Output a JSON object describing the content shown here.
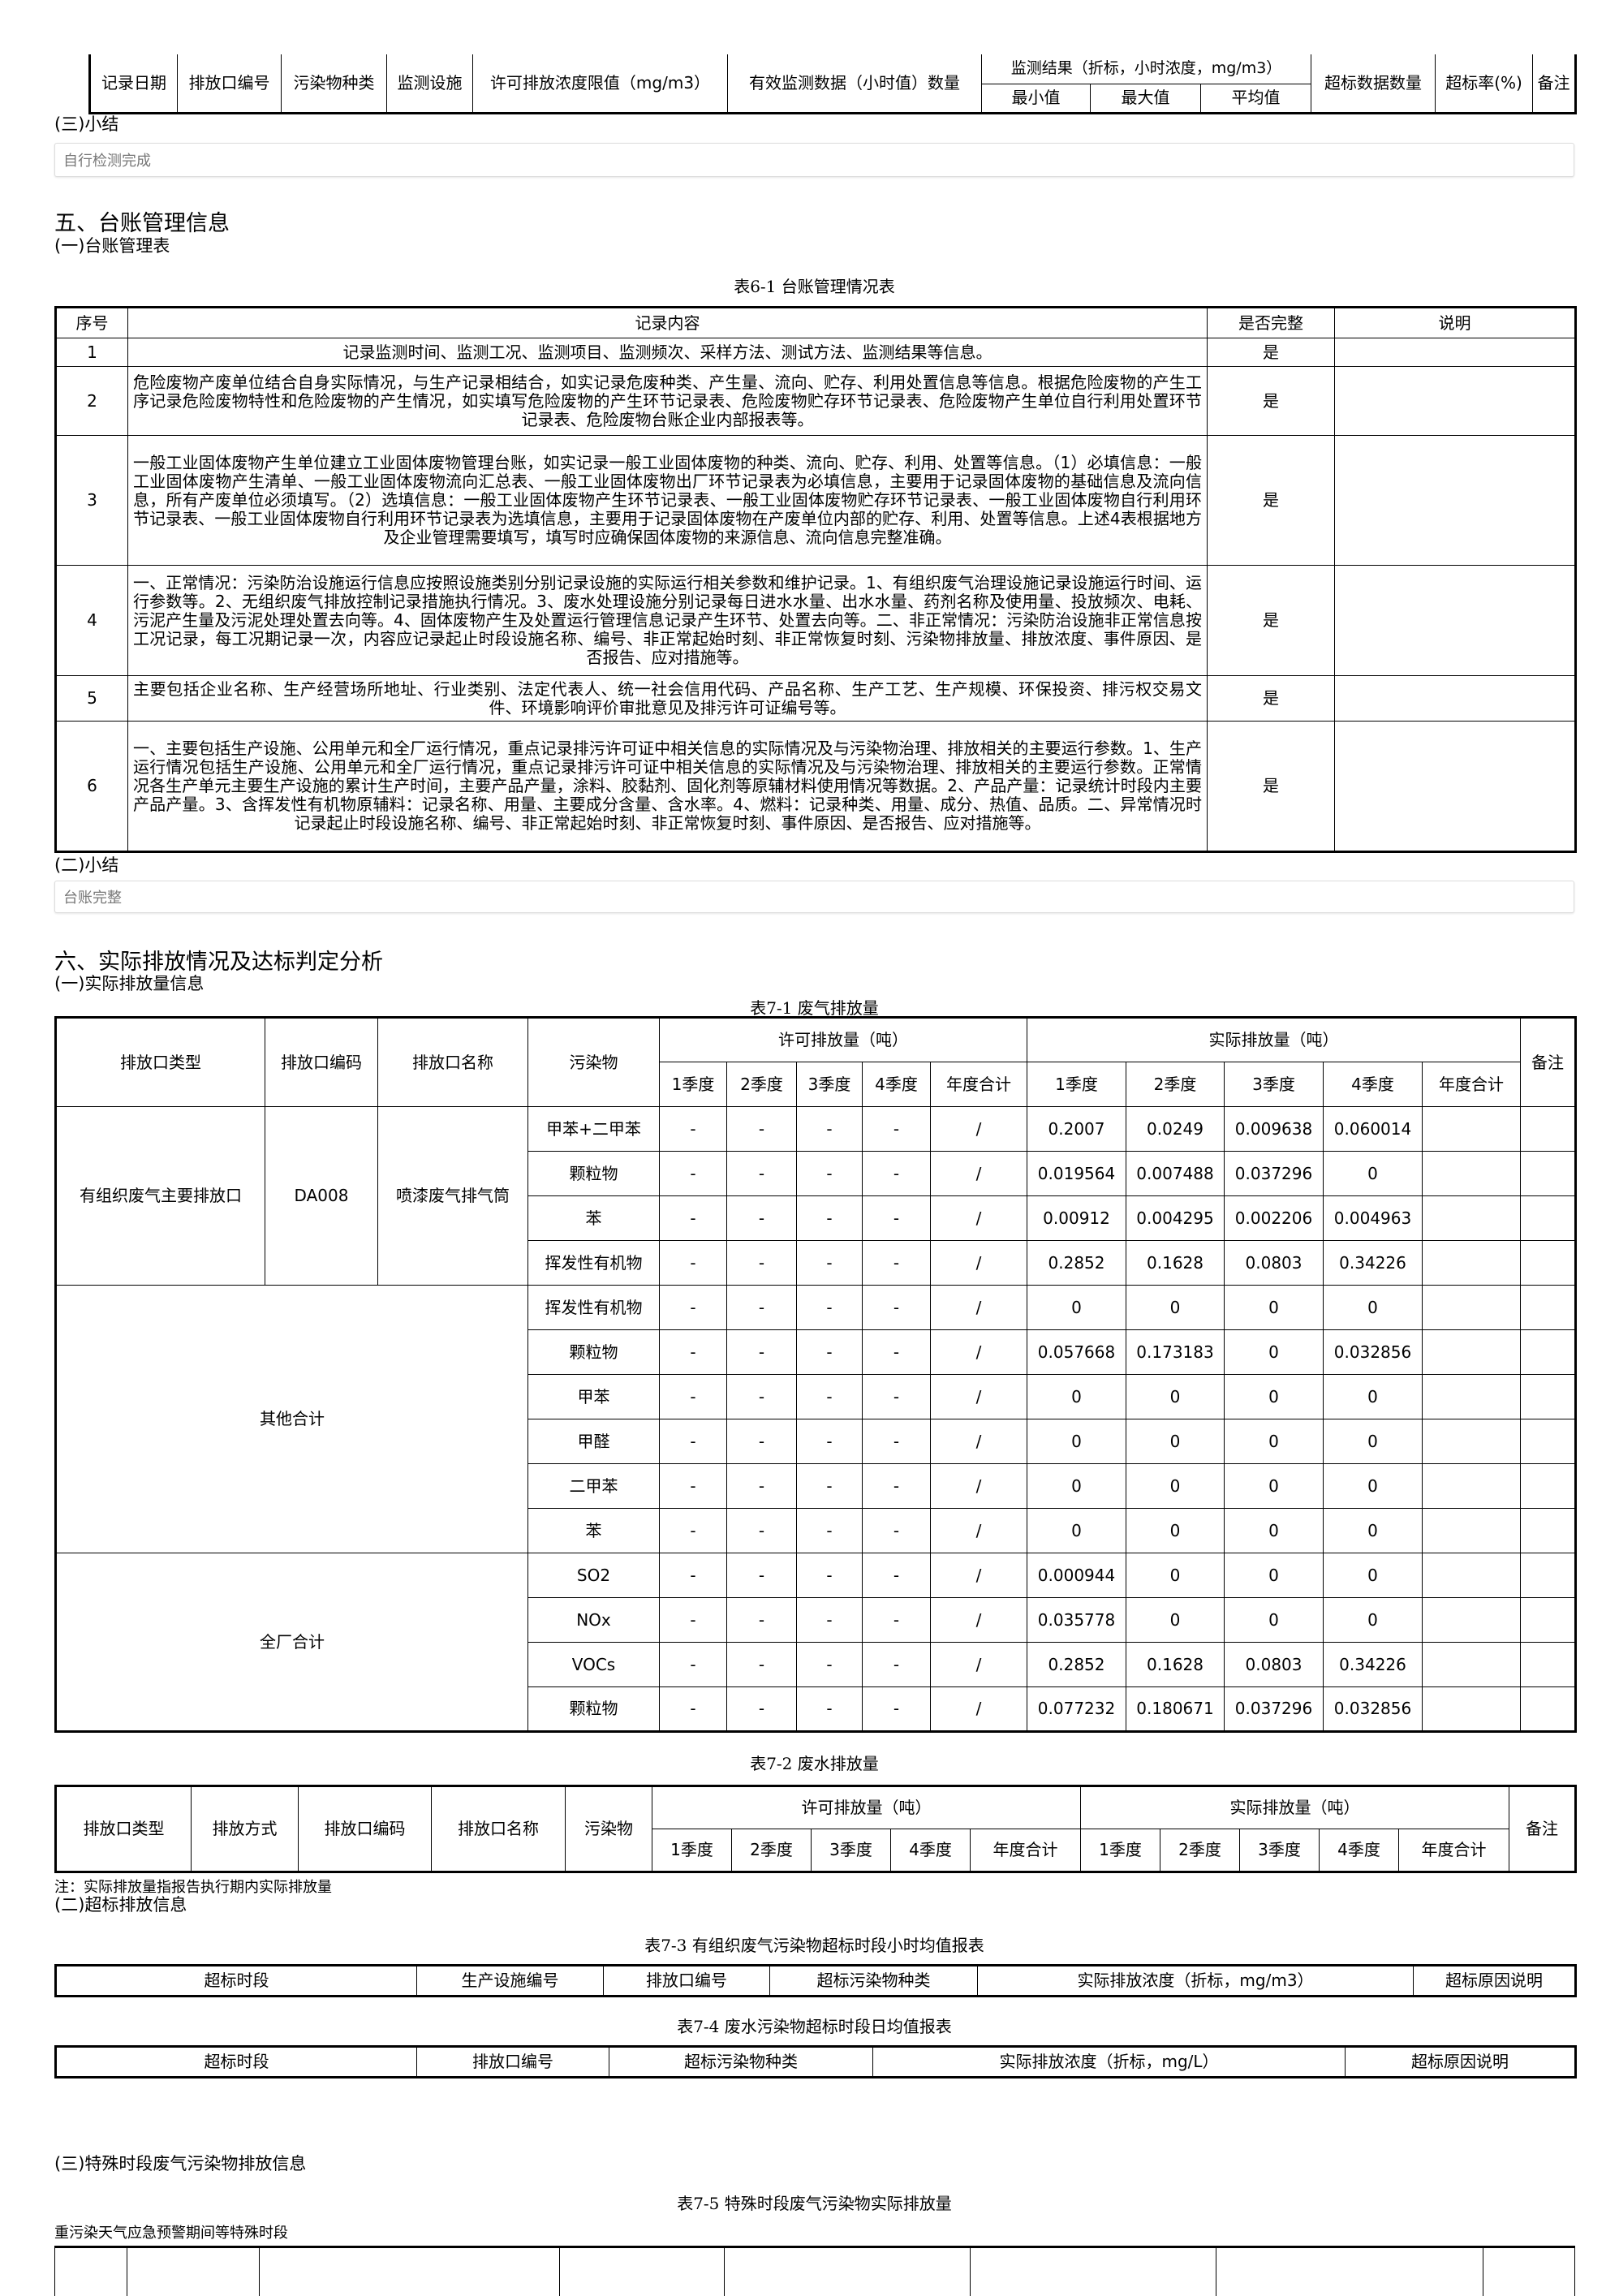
{
  "monitor_table": {
    "headers": [
      "记录日期",
      "排放口编号",
      "污染物种类",
      "监测设施",
      "许可排放浓度限值（mg/m3）",
      "有效监测数据（小时值）数量",
      "监测结果（折标，小时浓度，mg/m3）",
      "超标数据数量",
      "超标率(%)",
      "备注"
    ],
    "sub_headers": [
      "最小值",
      "最大值",
      "平均值"
    ]
  },
  "section4_summary": {
    "title": "(三)小结",
    "text": "自行检测完成"
  },
  "section5": {
    "title": "五、台账管理信息",
    "sub_title": "(一)台账管理表",
    "caption": "表6-1 台账管理情况表",
    "headers": [
      "序号",
      "记录内容",
      "是否完整",
      "说明"
    ],
    "rows": [
      {
        "no": "1",
        "content": "记录监测时间、监测工况、监测项目、监测频次、采样方法、测试方法、监测结果等信息。",
        "complete": "是",
        "note": ""
      },
      {
        "no": "2",
        "content": "危险废物产废单位结合自身实际情况，与生产记录相结合，如实记录危废种类、产生量、流向、贮存、利用处置信息等信息。根据危险废物的产生工序记录危险废物特性和危险废物的产生情况，如实填写危险废物的产生环节记录表、危险废物贮存环节记录表、危险废物产生单位自行利用处置环节记录表、危险废物台账企业内部报表等。",
        "complete": "是",
        "note": ""
      },
      {
        "no": "3",
        "content": "一般工业固体废物产生单位建立工业固体废物管理台账，如实记录一般工业固体废物的种类、流向、贮存、利用、处置等信息。（1）必填信息：一般工业固体废物产生清单、一般工业固体废物流向汇总表、一般工业固体废物出厂环节记录表为必填信息，主要用于记录固体废物的基础信息及流向信息，所有产废单位必须填写。（2）选填信息：一般工业固体废物产生环节记录表、一般工业固体废物贮存环节记录表、一般工业固体废物自行利用环节记录表、一般工业固体废物自行利用环节记录表为选填信息，主要用于记录固体废物在产废单位内部的贮存、利用、处置等信息。上述4表根据地方及企业管理需要填写，填写时应确保固体废物的来源信息、流向信息完整准确。",
        "complete": "是",
        "note": ""
      },
      {
        "no": "4",
        "content": "一、正常情况：污染防治设施运行信息应按照设施类别分别记录设施的实际运行相关参数和维护记录。1、有组织废气治理设施记录设施运行时间、运行参数等。2、无组织废气排放控制记录措施执行情况。3、废水处理设施分别记录每日进水水量、出水水量、药剂名称及使用量、投放频次、电耗、污泥产生量及污泥处理处置去向等。4、固体废物产生及处置运行管理信息记录产生环节、处置去向等。二、非正常情况：污染防治设施非正常信息按工况记录，每工况期记录一次，内容应记录起止时段设施名称、编号、非正常起始时刻、非正常恢复时刻、污染物排放量、排放浓度、事件原因、是否报告、应对措施等。",
        "complete": "是",
        "note": ""
      },
      {
        "no": "5",
        "content": "主要包括企业名称、生产经营场所地址、行业类别、法定代表人、统一社会信用代码、产品名称、生产工艺、生产规模、环保投资、排污权交易文件、环境影响评价审批意见及排污许可证编号等。",
        "complete": "是",
        "note": ""
      },
      {
        "no": "6",
        "content": "一、主要包括生产设施、公用单元和全厂运行情况，重点记录排污许可证中相关信息的实际情况及与污染物治理、排放相关的主要运行参数。1、生产运行情况包括生产设施、公用单元和全厂运行情况，重点记录排污许可证中相关信息的实际情况及与污染物治理、排放相关的主要运行参数。正常情况各生产单元主要生产设施的累计生产时间，主要产品产量，涂料、胶黏剂、固化剂等原辅材料使用情况等数据。2、产品产量：记录统计时段内主要产品产量。3、含挥发性有机物原辅料：记录名称、用量、主要成分含量、含水率。4、燃料：记录种类、用量、成分、热值、品质。二、异常情况时记录起止时段设施名称、编号、非正常起始时刻、非正常恢复时刻、事件原因、是否报告、应对措施等。",
        "complete": "是",
        "note": ""
      }
    ],
    "summary_title": "(二)小结",
    "summary_text": "台账完整"
  },
  "section6": {
    "title": "六、实际排放情况及达标判定分析",
    "sub_title": "(一)实际排放量信息",
    "gas_table": {
      "caption": "表7-1 废气排放量",
      "headers": [
        "排放口类型",
        "排放口编码",
        "排放口名称",
        "污染物",
        "许可排放量（吨）",
        "实际排放量（吨）",
        "备注"
      ],
      "quarters": [
        "1季度",
        "2季度",
        "3季度",
        "4季度",
        "年度合计"
      ],
      "groups": [
        {
          "type": "有组织废气主要排放口",
          "code": "DA008",
          "name": "喷漆废气排气筒",
          "rows": [
            {
              "pollutant": "甲苯+二甲苯",
              "permit": [
                "-",
                "-",
                "-",
                "-",
                "/"
              ],
              "actual": [
                "0.2007",
                "0.0249",
                "0.009638",
                "0.060014",
                ""
              ],
              "note": ""
            },
            {
              "pollutant": "颗粒物",
              "permit": [
                "-",
                "-",
                "-",
                "-",
                "/"
              ],
              "actual": [
                "0.019564",
                "0.007488",
                "0.037296",
                "0",
                ""
              ],
              "note": ""
            },
            {
              "pollutant": "苯",
              "permit": [
                "-",
                "-",
                "-",
                "-",
                "/"
              ],
              "actual": [
                "0.00912",
                "0.004295",
                "0.002206",
                "0.004963",
                ""
              ],
              "note": ""
            },
            {
              "pollutant": "挥发性有机物",
              "permit": [
                "-",
                "-",
                "-",
                "-",
                "/"
              ],
              "actual": [
                "0.2852",
                "0.1628",
                "0.0803",
                "0.34226",
                ""
              ],
              "note": ""
            }
          ]
        },
        {
          "type": "其他合计",
          "rows": [
            {
              "pollutant": "挥发性有机物",
              "permit": [
                "-",
                "-",
                "-",
                "-",
                "/"
              ],
              "actual": [
                "0",
                "0",
                "0",
                "0",
                ""
              ],
              "note": ""
            },
            {
              "pollutant": "颗粒物",
              "permit": [
                "-",
                "-",
                "-",
                "-",
                "/"
              ],
              "actual": [
                "0.057668",
                "0.173183",
                "0",
                "0.032856",
                ""
              ],
              "note": ""
            },
            {
              "pollutant": "甲苯",
              "permit": [
                "-",
                "-",
                "-",
                "-",
                "/"
              ],
              "actual": [
                "0",
                "0",
                "0",
                "0",
                ""
              ],
              "note": ""
            },
            {
              "pollutant": "甲醛",
              "permit": [
                "-",
                "-",
                "-",
                "-",
                "/"
              ],
              "actual": [
                "0",
                "0",
                "0",
                "0",
                ""
              ],
              "note": ""
            },
            {
              "pollutant": "二甲苯",
              "permit": [
                "-",
                "-",
                "-",
                "-",
                "/"
              ],
              "actual": [
                "0",
                "0",
                "0",
                "0",
                ""
              ],
              "note": ""
            },
            {
              "pollutant": "苯",
              "permit": [
                "-",
                "-",
                "-",
                "-",
                "/"
              ],
              "actual": [
                "0",
                "0",
                "0",
                "0",
                ""
              ],
              "note": ""
            }
          ]
        },
        {
          "type": "全厂合计",
          "rows": [
            {
              "pollutant": "SO2",
              "permit": [
                "-",
                "-",
                "-",
                "-",
                "/"
              ],
              "actual": [
                "0.000944",
                "0",
                "0",
                "0",
                ""
              ],
              "note": ""
            },
            {
              "pollutant": "NOx",
              "permit": [
                "-",
                "-",
                "-",
                "-",
                "/"
              ],
              "actual": [
                "0.035778",
                "0",
                "0",
                "0",
                ""
              ],
              "note": ""
            },
            {
              "pollutant": "VOCs",
              "permit": [
                "-",
                "-",
                "-",
                "-",
                "/"
              ],
              "actual": [
                "0.2852",
                "0.1628",
                "0.0803",
                "0.34226",
                ""
              ],
              "note": ""
            },
            {
              "pollutant": "颗粒物",
              "permit": [
                "-",
                "-",
                "-",
                "-",
                "/"
              ],
              "actual": [
                "0.077232",
                "0.180671",
                "0.037296",
                "0.032856",
                ""
              ],
              "note": ""
            }
          ]
        }
      ]
    },
    "water_table": {
      "caption": "表7-2 废水排放量",
      "headers": [
        "排放口类型",
        "排放方式",
        "排放口编码",
        "排放口名称",
        "污染物",
        "许可排放量（吨）",
        "实际排放量（吨）",
        "备注"
      ],
      "quarters": [
        "1季度",
        "2季度",
        "3季度",
        "4季度",
        "年度合计"
      ],
      "note": "注：实际排放量指报告执行期内实际排放量"
    },
    "exceed_title": "(二)超标排放信息",
    "exceed_gas": {
      "caption": "表7-3 有组织废气污染物超标时段小时均值报表",
      "headers": [
        "超标时段",
        "生产设施编号",
        "排放口编号",
        "超标污染物种类",
        "实际排放浓度（折标，mg/m3）",
        "超标原因说明"
      ]
    },
    "exceed_water": {
      "caption": "表7-4 废水污染物超标时段日均值报表",
      "headers": [
        "超标时段",
        "排放口编号",
        "超标污染物种类",
        "实际排放浓度（折标，mg/L）",
        "超标原因说明"
      ]
    },
    "special_title": "(三)特殊时段废气污染物排放信息",
    "special": {
      "caption": "表7-5 特殊时段废气污染物实际排放量",
      "label": "重污染天气应急预警期间等特殊时段"
    }
  }
}
